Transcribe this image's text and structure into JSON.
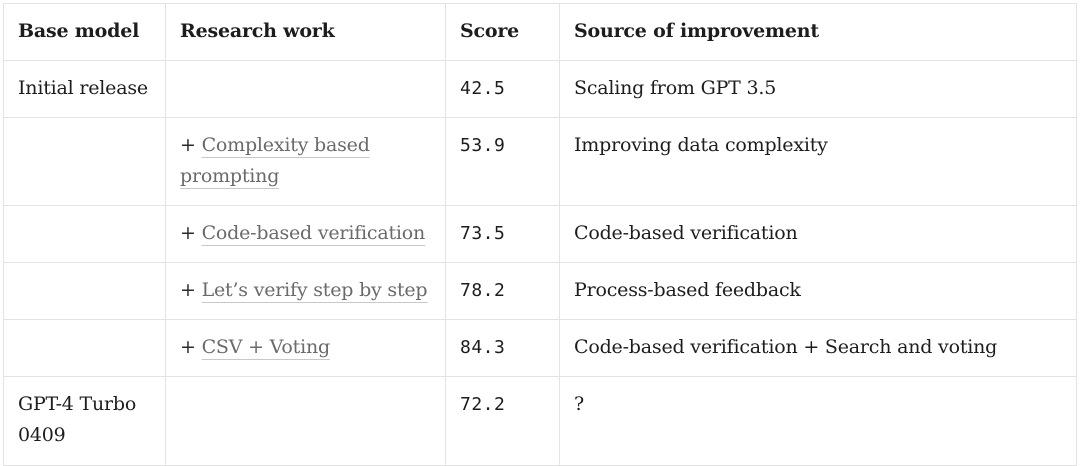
{
  "table": {
    "headers": {
      "base_model": "Base model",
      "research_work": "Research work",
      "score": "Score",
      "source": "Source of improvement"
    },
    "rows": [
      {
        "base_model": "Initial release",
        "plus": "",
        "research_work": "",
        "score": "42.5",
        "source": "Scaling from GPT 3.5"
      },
      {
        "base_model": "",
        "plus": "+ ",
        "research_work": "Complexity based prompting",
        "score": "53.9",
        "source": "Improving data complexity"
      },
      {
        "base_model": "",
        "plus": "+ ",
        "research_work": "Code-based verification",
        "score": "73.5",
        "source": "Code-based verification"
      },
      {
        "base_model": "",
        "plus": "+ ",
        "research_work": "Let’s verify step by step",
        "score": "78.2",
        "source": "Process-based feedback"
      },
      {
        "base_model": "",
        "plus": "+ ",
        "research_work": "CSV + Voting",
        "score": "84.3",
        "source": "Code-based verification + Search and voting"
      },
      {
        "base_model": "GPT-4 Turbo 0409",
        "plus": "",
        "research_work": "",
        "score": "72.2",
        "source": "?"
      }
    ]
  }
}
